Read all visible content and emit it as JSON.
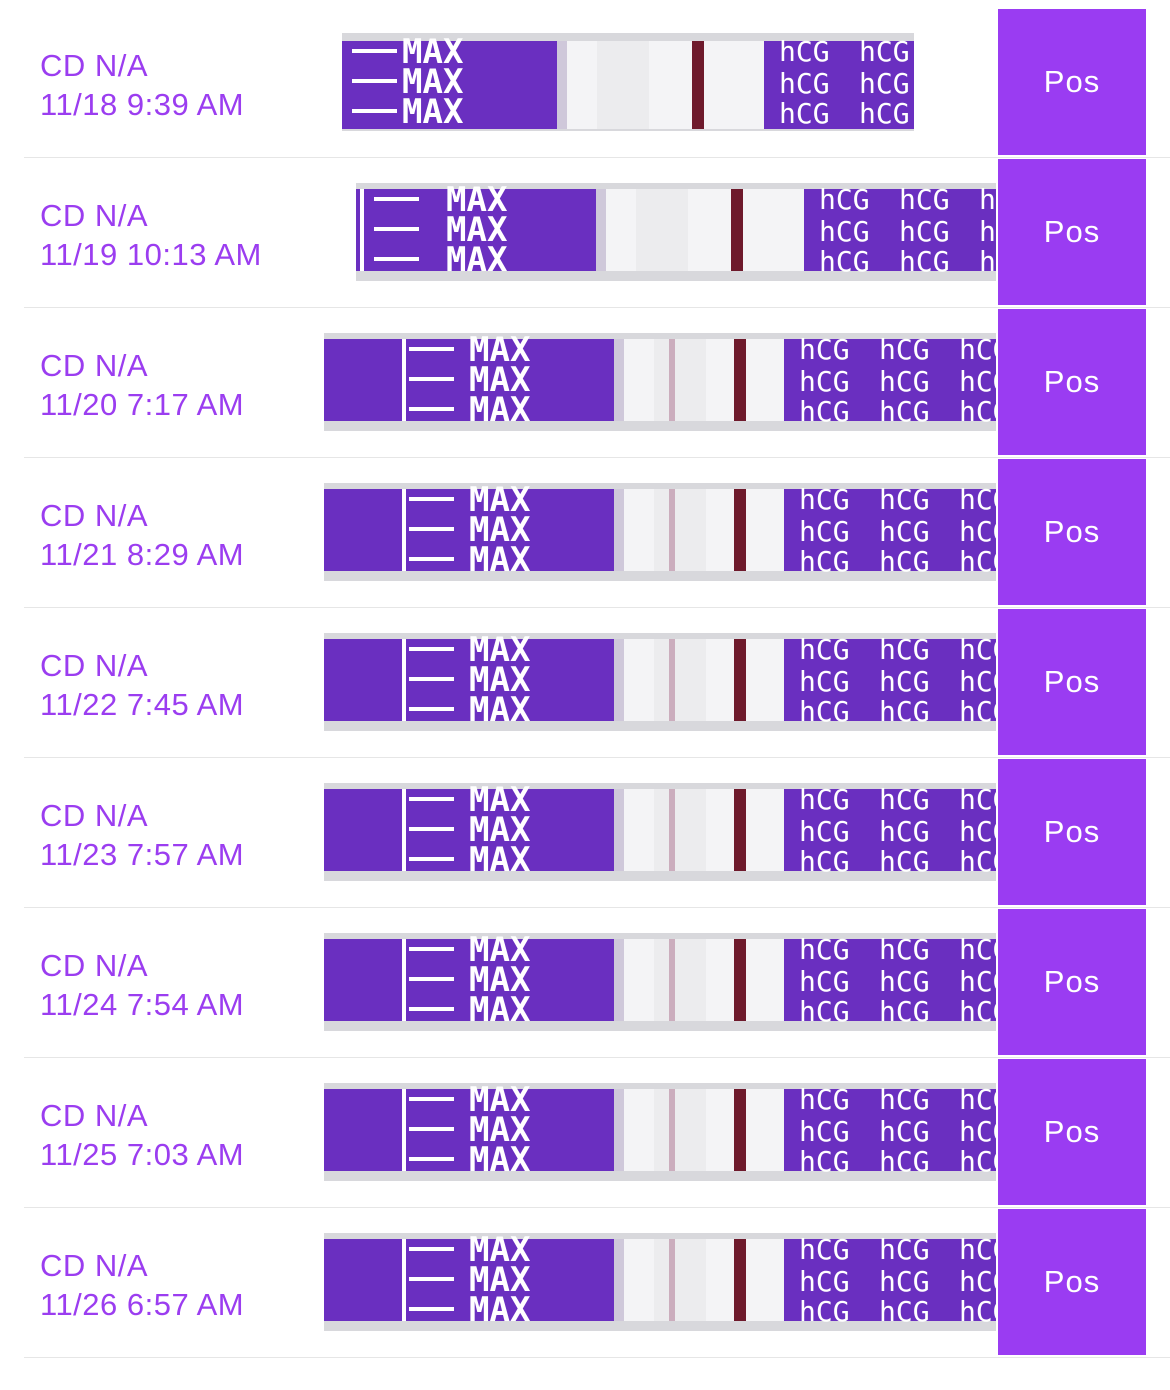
{
  "entries": [
    {
      "cycle_day": "CD N/A",
      "datetime": "11/18 9:39 AM",
      "result": "Pos"
    },
    {
      "cycle_day": "CD N/A",
      "datetime": "11/19 10:13 AM",
      "result": "Pos"
    },
    {
      "cycle_day": "CD N/A",
      "datetime": "11/20 7:17 AM",
      "result": "Pos"
    },
    {
      "cycle_day": "CD N/A",
      "datetime": "11/21 8:29 AM",
      "result": "Pos"
    },
    {
      "cycle_day": "CD N/A",
      "datetime": "11/22 7:45 AM",
      "result": "Pos"
    },
    {
      "cycle_day": "CD N/A",
      "datetime": "11/23 7:57 AM",
      "result": "Pos"
    },
    {
      "cycle_day": "CD N/A",
      "datetime": "11/24 7:54 AM",
      "result": "Pos"
    },
    {
      "cycle_day": "CD N/A",
      "datetime": "11/25 7:03 AM",
      "result": "Pos"
    },
    {
      "cycle_day": "CD N/A",
      "datetime": "11/26 6:57 AM",
      "result": "Pos"
    }
  ],
  "strip_labels": {
    "handle_text": "MAX",
    "hormone_text": "hCG"
  },
  "colors": {
    "accent": "#9b3df0",
    "result_tile": "#9a3cf2",
    "strip_purple": "#6a2fc0",
    "test_line": "#6e1a2c"
  }
}
